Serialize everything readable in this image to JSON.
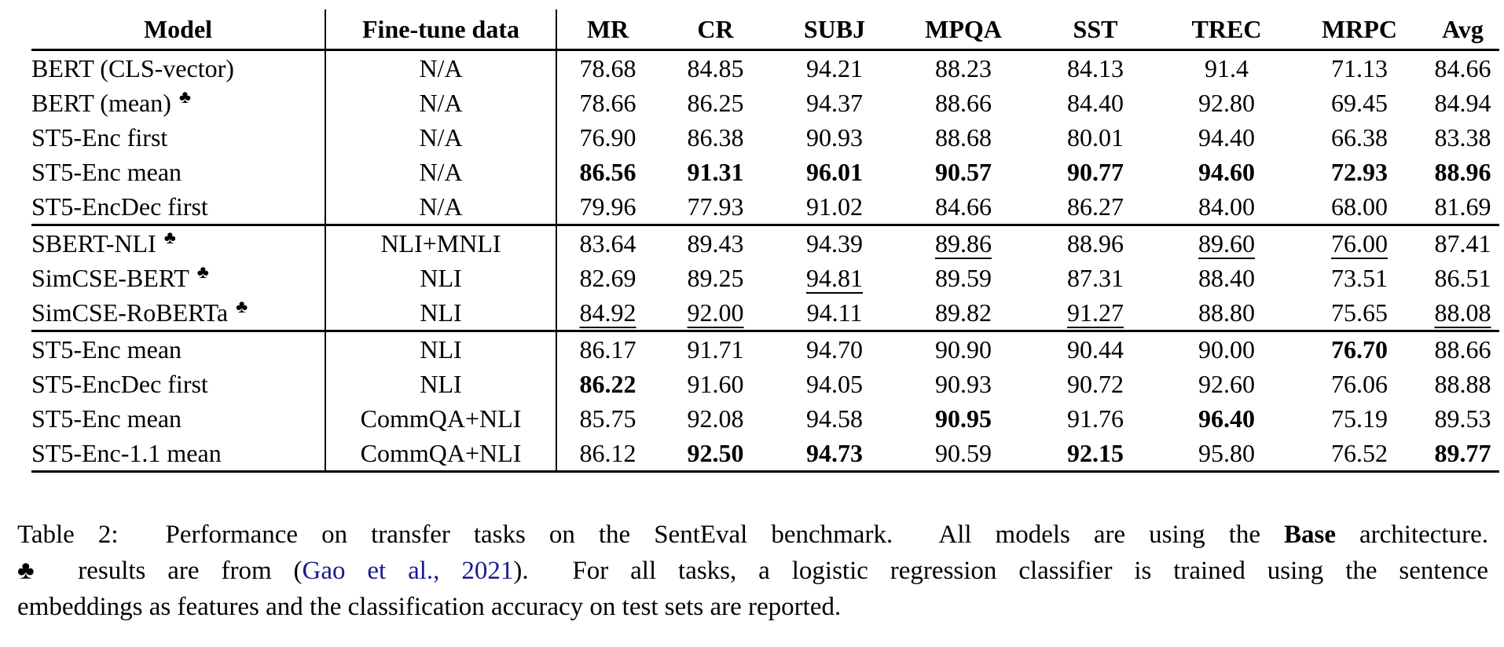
{
  "colors": {
    "text_black": "#000000",
    "link_blue": "#1a1a8f",
    "rule_black": "#000000",
    "background": "#ffffff"
  },
  "table": {
    "club_symbol": "♣",
    "columns": [
      "Model",
      "Fine-tune data",
      "MR",
      "CR",
      "SUBJ",
      "MPQA",
      "SST",
      "TREC",
      "MRPC",
      "Avg"
    ],
    "groups": [
      {
        "rows": [
          {
            "model": "BERT (CLS-vector)",
            "club": false,
            "finetune": "N/A",
            "cells": [
              {
                "v": "78.68"
              },
              {
                "v": "84.85"
              },
              {
                "v": "94.21"
              },
              {
                "v": "88.23"
              },
              {
                "v": "84.13"
              },
              {
                "v": "91.4"
              },
              {
                "v": "71.13"
              },
              {
                "v": "84.66"
              }
            ]
          },
          {
            "model": "BERT (mean)",
            "club": true,
            "finetune": "N/A",
            "cells": [
              {
                "v": "78.66"
              },
              {
                "v": "86.25"
              },
              {
                "v": "94.37"
              },
              {
                "v": "88.66"
              },
              {
                "v": "84.40"
              },
              {
                "v": "92.80"
              },
              {
                "v": "69.45"
              },
              {
                "v": "84.94"
              }
            ]
          },
          {
            "model": "ST5-Enc first",
            "club": false,
            "finetune": "N/A",
            "cells": [
              {
                "v": "76.90"
              },
              {
                "v": "86.38"
              },
              {
                "v": "90.93"
              },
              {
                "v": "88.68"
              },
              {
                "v": "80.01"
              },
              {
                "v": "94.40"
              },
              {
                "v": "66.38"
              },
              {
                "v": "83.38"
              }
            ]
          },
          {
            "model": "ST5-Enc mean",
            "club": false,
            "finetune": "N/A",
            "cells": [
              {
                "v": "86.56",
                "b": true
              },
              {
                "v": "91.31",
                "b": true
              },
              {
                "v": "96.01",
                "b": true
              },
              {
                "v": "90.57",
                "b": true
              },
              {
                "v": "90.77",
                "b": true
              },
              {
                "v": "94.60",
                "b": true
              },
              {
                "v": "72.93",
                "b": true
              },
              {
                "v": "88.96",
                "b": true
              }
            ]
          },
          {
            "model": "ST5-EncDec first",
            "club": false,
            "finetune": "N/A",
            "cells": [
              {
                "v": "79.96"
              },
              {
                "v": "77.93"
              },
              {
                "v": "91.02"
              },
              {
                "v": "84.66"
              },
              {
                "v": "86.27"
              },
              {
                "v": "84.00"
              },
              {
                "v": "68.00"
              },
              {
                "v": "81.69"
              }
            ]
          }
        ]
      },
      {
        "rows": [
          {
            "model": "SBERT-NLI",
            "club": true,
            "finetune": "NLI+MNLI",
            "cells": [
              {
                "v": "83.64"
              },
              {
                "v": "89.43"
              },
              {
                "v": "94.39"
              },
              {
                "v": "89.86",
                "u": true
              },
              {
                "v": "88.96"
              },
              {
                "v": "89.60",
                "u": true
              },
              {
                "v": "76.00",
                "u": true
              },
              {
                "v": "87.41"
              }
            ]
          },
          {
            "model": "SimCSE-BERT",
            "club": true,
            "finetune": "NLI",
            "cells": [
              {
                "v": "82.69"
              },
              {
                "v": "89.25"
              },
              {
                "v": "94.81",
                "u": true
              },
              {
                "v": "89.59"
              },
              {
                "v": "87.31"
              },
              {
                "v": "88.40"
              },
              {
                "v": "73.51"
              },
              {
                "v": "86.51"
              }
            ]
          },
          {
            "model": "SimCSE-RoBERTa",
            "club": true,
            "finetune": "NLI",
            "cells": [
              {
                "v": "84.92",
                "u": true
              },
              {
                "v": "92.00",
                "u": true
              },
              {
                "v": "94.11"
              },
              {
                "v": "89.82"
              },
              {
                "v": "91.27",
                "u": true
              },
              {
                "v": "88.80"
              },
              {
                "v": "75.65"
              },
              {
                "v": "88.08",
                "u": true
              }
            ]
          }
        ]
      },
      {
        "rows": [
          {
            "model": "ST5-Enc mean",
            "club": false,
            "finetune": "NLI",
            "cells": [
              {
                "v": "86.17"
              },
              {
                "v": "91.71"
              },
              {
                "v": "94.70"
              },
              {
                "v": "90.90"
              },
              {
                "v": "90.44"
              },
              {
                "v": "90.00"
              },
              {
                "v": "76.70",
                "b": true
              },
              {
                "v": "88.66"
              }
            ]
          },
          {
            "model": "ST5-EncDec first",
            "club": false,
            "finetune": "NLI",
            "cells": [
              {
                "v": "86.22",
                "b": true
              },
              {
                "v": "91.60"
              },
              {
                "v": "94.05"
              },
              {
                "v": "90.93"
              },
              {
                "v": "90.72"
              },
              {
                "v": "92.60"
              },
              {
                "v": "76.06"
              },
              {
                "v": "88.88"
              }
            ]
          },
          {
            "model": "ST5-Enc mean",
            "club": false,
            "finetune": "CommQA+NLI",
            "cells": [
              {
                "v": "85.75"
              },
              {
                "v": "92.08"
              },
              {
                "v": "94.58"
              },
              {
                "v": "90.95",
                "b": true
              },
              {
                "v": "91.76"
              },
              {
                "v": "96.40",
                "b": true
              },
              {
                "v": "75.19"
              },
              {
                "v": "89.53"
              }
            ]
          },
          {
            "model": "ST5-Enc-1.1 mean",
            "club": false,
            "finetune": "CommQA+NLI",
            "cells": [
              {
                "v": "86.12"
              },
              {
                "v": "92.50",
                "b": true
              },
              {
                "v": "94.73",
                "b": true
              },
              {
                "v": "90.59"
              },
              {
                "v": "92.15",
                "b": true
              },
              {
                "v": "95.80"
              },
              {
                "v": "76.52"
              },
              {
                "v": "89.77",
                "b": true
              }
            ]
          }
        ]
      }
    ]
  },
  "caption": {
    "l1a": "Table 2:  Performance on transfer tasks on the SentEval benchmark.  All models are using the ",
    "l1b": "Base",
    "l1c": " architecture.",
    "club_symbol": "♣",
    "l2a": " results are from (",
    "l2b": "Gao et al., 2021",
    "l2c": ").  For all tasks, a logistic regression classifier is trained using the sentence",
    "l3": "embeddings as features and the classification accuracy on test sets are reported."
  }
}
